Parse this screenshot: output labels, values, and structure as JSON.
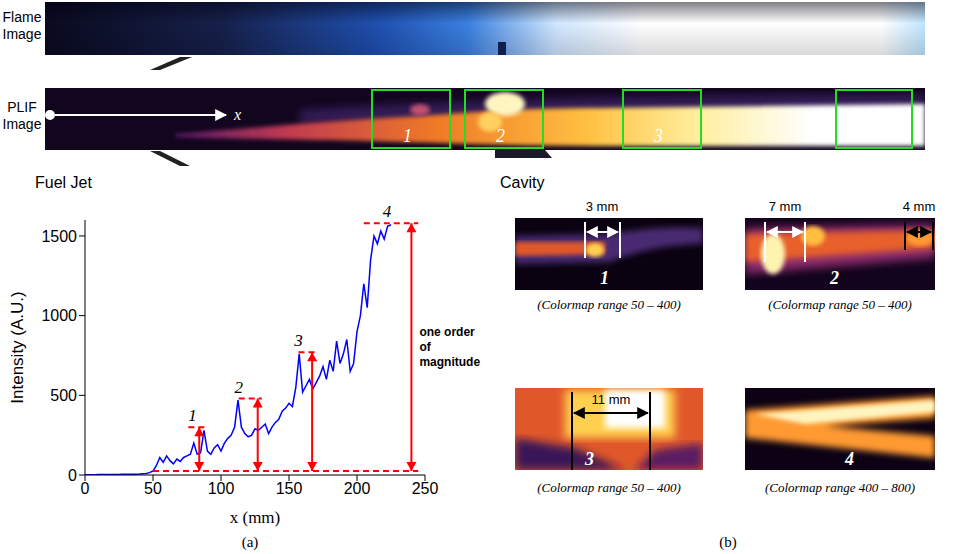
{
  "figure": {
    "flame_label": "Flame Image",
    "plif_label": "PLIF Image",
    "axis_arrow_label": "x",
    "fuel_jet_label": "Fuel Jet",
    "cavity_label": "Cavity",
    "box_labels": [
      "1",
      "2",
      "3",
      "4"
    ],
    "panel_a_label": "(a)",
    "panel_b_label": "(b)",
    "tiles": [
      {
        "number": "1",
        "measures": [
          "3 mm"
        ],
        "caption": "(Colormap range 50 – 400)"
      },
      {
        "number": "2",
        "measures": [
          "7 mm",
          "4 mm"
        ],
        "caption": "(Colormap range 50 – 400)"
      },
      {
        "number": "3",
        "measures": [
          "11 mm"
        ],
        "caption": "(Colormap range 50 – 400)"
      },
      {
        "number": "4",
        "measures": [],
        "caption": "(Colormap range 400 – 800)"
      }
    ]
  },
  "chart_data": {
    "type": "line",
    "xlabel": "x (mm)",
    "ylabel": "Intensity (A.U.)",
    "color": "#0000ff",
    "grid": false,
    "xlim": [
      0,
      250
    ],
    "xticks": [
      0,
      50,
      100,
      150,
      200,
      250
    ],
    "ylim": [
      0,
      1600
    ],
    "yticks": [
      0,
      500,
      1000,
      1500
    ],
    "x": [
      0,
      2.5,
      5,
      7.5,
      10,
      12.5,
      15,
      17.5,
      20,
      22.5,
      25,
      27.5,
      30,
      32.5,
      35,
      37.5,
      40,
      42.5,
      45,
      47.5,
      50,
      52.5,
      55,
      57.5,
      60,
      62.5,
      65,
      67.5,
      70,
      72.5,
      75,
      77.5,
      80,
      82.5,
      85,
      87.5,
      90,
      92.5,
      95,
      97.5,
      100,
      102.5,
      105,
      107.5,
      110,
      112.5,
      115,
      117.5,
      120,
      122.5,
      125,
      127.5,
      130,
      132.5,
      135,
      137.5,
      140,
      142.5,
      145,
      147.5,
      150,
      152.5,
      155,
      157.5,
      160,
      162.5,
      165,
      167.5,
      170,
      172.5,
      175,
      177.5,
      180,
      182.5,
      185,
      187.5,
      190,
      192.5,
      195,
      197.5,
      200,
      202.5,
      205,
      207.5,
      210,
      212.5,
      215,
      217.5,
      220,
      222.5,
      225
    ],
    "values": [
      2,
      2,
      2,
      2,
      3,
      3,
      3,
      3,
      3,
      3,
      3,
      4,
      4,
      4,
      5,
      5,
      6,
      8,
      10,
      15,
      25,
      60,
      110,
      80,
      120,
      90,
      70,
      100,
      85,
      110,
      120,
      130,
      200,
      130,
      140,
      280,
      150,
      130,
      170,
      190,
      150,
      200,
      230,
      250,
      300,
      470,
      300,
      260,
      240,
      250,
      290,
      280,
      300,
      320,
      260,
      300,
      330,
      350,
      400,
      420,
      450,
      430,
      550,
      760,
      520,
      560,
      600,
      540,
      580,
      620,
      680,
      600,
      720,
      650,
      840,
      700,
      760,
      850,
      650,
      700,
      900,
      1000,
      1200,
      1050,
      1350,
      1500,
      1450,
      1530,
      1480,
      1560,
      1570
    ],
    "annotations": {
      "color": "#ff0000",
      "baseline": {
        "y": 25,
        "xspan": [
          50,
          245
        ]
      },
      "peaks": [
        {
          "label": "1",
          "label_x": 79,
          "x": 84,
          "level": 300,
          "xspan": [
            76,
            88
          ]
        },
        {
          "label": "2",
          "label_x": 113,
          "x": 127,
          "level": 480,
          "xspan": [
            113,
            130
          ]
        },
        {
          "label": "3",
          "label_x": 157,
          "x": 167,
          "level": 770,
          "xspan": [
            157,
            170
          ]
        },
        {
          "label": "4",
          "label_x": 222,
          "x": 240,
          "level": 1580,
          "xspan": [
            205,
            245
          ],
          "text": "one order of magnitude"
        }
      ]
    }
  }
}
